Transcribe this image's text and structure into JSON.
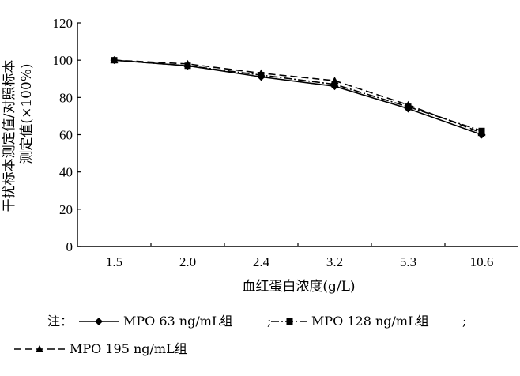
{
  "chart_data": {
    "type": "line",
    "categories": [
      "1.5",
      "2.0",
      "2.4",
      "3.2",
      "5.3",
      "10.6"
    ],
    "xlabel": "血红蛋白浓度(g/L)",
    "ylabel_line1": "干扰标本测定值/对照标本",
    "ylabel_line2": "测定值(×100%)",
    "ylim": [
      0,
      120
    ],
    "yticks": [
      "0",
      "20",
      "40",
      "60",
      "80",
      "100",
      "120"
    ],
    "grid": false,
    "series": [
      {
        "name": "MPO 63 ng/mL组",
        "values": [
          100,
          97,
          91,
          86,
          74,
          60
        ],
        "marker": "diamond",
        "dash": "solid"
      },
      {
        "name": "MPO 128 ng/mL组",
        "values": [
          100,
          97,
          92,
          87,
          75,
          62
        ],
        "marker": "square",
        "dash": "dash-dot"
      },
      {
        "name": "MPO 195 ng/mL组",
        "values": [
          100,
          98,
          93,
          89,
          76,
          61
        ],
        "marker": "triangle",
        "dash": "dashed"
      }
    ],
    "legend": {
      "prefix": "注：",
      "sep": ";",
      "placement": "bottom"
    }
  }
}
